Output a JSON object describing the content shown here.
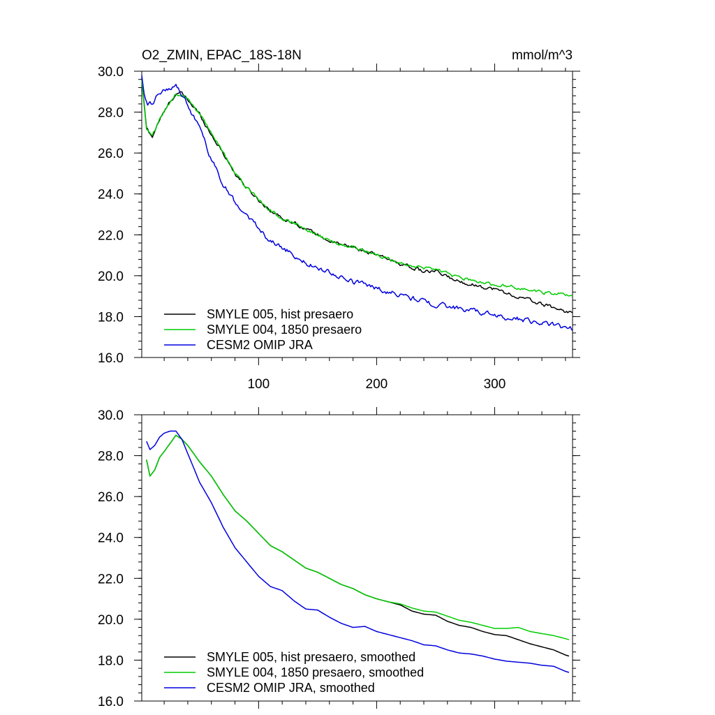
{
  "chart_data": [
    {
      "type": "line",
      "title": "O2_ZMIN, EPAC_18S-18N",
      "units": "mmol/m^3",
      "xlim": [
        1,
        366
      ],
      "ylim": [
        16.0,
        30.0
      ],
      "x_ticks": [
        100,
        200,
        300
      ],
      "y_ticks": [
        16.0,
        18.0,
        20.0,
        22.0,
        24.0,
        26.0,
        28.0,
        30.0
      ],
      "y_tick_labels": [
        "16.0",
        "18.0",
        "20.0",
        "22.0",
        "24.0",
        "26.0",
        "28.0",
        "30.0"
      ],
      "x_tick_labels": [
        "100",
        "200",
        "300"
      ],
      "legend_position": "bottom-left",
      "series": [
        {
          "name": "SMYLE 005, hist presaero",
          "color": "#000000",
          "x": [
            1,
            5,
            10,
            15,
            20,
            25,
            30,
            35,
            40,
            50,
            60,
            70,
            80,
            90,
            100,
            110,
            120,
            130,
            140,
            150,
            160,
            170,
            180,
            190,
            200,
            210,
            220,
            230,
            240,
            250,
            260,
            270,
            280,
            290,
            300,
            310,
            320,
            330,
            340,
            350,
            360,
            366
          ],
          "y": [
            29.6,
            27.2,
            26.8,
            27.5,
            28.0,
            28.5,
            28.9,
            28.9,
            28.6,
            27.9,
            26.9,
            26.0,
            25.0,
            24.3,
            23.7,
            23.2,
            22.8,
            22.6,
            22.3,
            22.0,
            21.7,
            21.5,
            21.4,
            21.2,
            21.0,
            20.8,
            20.6,
            20.4,
            20.2,
            20.2,
            19.95,
            19.7,
            19.6,
            19.45,
            19.35,
            19.15,
            18.95,
            18.8,
            18.6,
            18.45,
            18.25,
            18.2
          ],
          "noise": 0.07
        },
        {
          "name": "SMYLE 004, 1850 presaero",
          "color": "#00cc00",
          "x": [
            1,
            5,
            10,
            15,
            20,
            25,
            30,
            35,
            40,
            50,
            60,
            70,
            80,
            90,
            100,
            110,
            120,
            130,
            140,
            150,
            160,
            170,
            180,
            190,
            200,
            210,
            220,
            230,
            240,
            250,
            260,
            270,
            280,
            290,
            300,
            310,
            320,
            330,
            340,
            350,
            360,
            366
          ],
          "y": [
            29.6,
            27.2,
            26.8,
            27.5,
            28.0,
            28.5,
            28.9,
            28.9,
            28.6,
            27.9,
            26.9,
            26.0,
            25.0,
            24.3,
            23.7,
            23.2,
            22.8,
            22.6,
            22.3,
            22.0,
            21.7,
            21.5,
            21.4,
            21.2,
            21.0,
            20.8,
            20.65,
            20.5,
            20.35,
            20.3,
            20.1,
            19.9,
            19.8,
            19.65,
            19.55,
            19.5,
            19.4,
            19.3,
            19.2,
            19.15,
            19.05,
            19.0
          ],
          "noise": 0.07
        },
        {
          "name": "CESM2 OMIP JRA",
          "color": "#0000dd",
          "x": [
            1,
            3,
            6,
            10,
            15,
            20,
            25,
            30,
            35,
            40,
            50,
            60,
            70,
            80,
            90,
            100,
            110,
            120,
            130,
            140,
            150,
            160,
            170,
            180,
            190,
            200,
            210,
            220,
            230,
            240,
            250,
            260,
            270,
            280,
            290,
            300,
            310,
            320,
            330,
            340,
            350,
            360,
            366
          ],
          "y": [
            29.7,
            28.9,
            28.3,
            28.4,
            28.9,
            29.1,
            29.2,
            29.3,
            28.8,
            28.3,
            27.2,
            25.7,
            24.5,
            23.6,
            23.0,
            22.3,
            21.7,
            21.4,
            21.0,
            20.6,
            20.4,
            20.2,
            19.9,
            19.7,
            19.6,
            19.4,
            19.2,
            19.1,
            18.9,
            18.75,
            18.6,
            18.5,
            18.4,
            18.3,
            18.2,
            18.05,
            17.95,
            17.9,
            17.8,
            17.7,
            17.6,
            17.45,
            17.4
          ],
          "noise": 0.1
        }
      ]
    },
    {
      "type": "line",
      "title": "",
      "xlim": [
        1,
        366
      ],
      "ylim": [
        16.0,
        30.0
      ],
      "x_ticks": [
        100,
        200,
        300
      ],
      "y_ticks": [
        16.0,
        18.0,
        20.0,
        22.0,
        24.0,
        26.0,
        28.0,
        30.0
      ],
      "y_tick_labels": [
        "16.0",
        "18.0",
        "20.0",
        "22.0",
        "24.0",
        "26.0",
        "28.0",
        "30.0"
      ],
      "legend_position": "bottom-left",
      "series": [
        {
          "name": "SMYLE 005, hist presaero, smoothed",
          "color": "#000000",
          "x": [
            5,
            8,
            12,
            16,
            20,
            25,
            30,
            35,
            40,
            50,
            60,
            70,
            80,
            90,
            100,
            110,
            120,
            130,
            140,
            150,
            160,
            170,
            180,
            190,
            200,
            210,
            220,
            230,
            240,
            250,
            260,
            270,
            280,
            290,
            300,
            310,
            320,
            330,
            340,
            350,
            360,
            363
          ],
          "y": [
            27.8,
            27.0,
            27.3,
            27.9,
            28.2,
            28.6,
            29.0,
            28.8,
            28.5,
            27.7,
            27.0,
            26.1,
            25.3,
            24.8,
            24.2,
            23.6,
            23.3,
            22.9,
            22.5,
            22.3,
            22.0,
            21.7,
            21.5,
            21.2,
            21.0,
            20.85,
            20.7,
            20.4,
            20.25,
            20.2,
            19.9,
            19.7,
            19.6,
            19.4,
            19.25,
            19.2,
            19.0,
            18.8,
            18.65,
            18.5,
            18.25,
            18.2
          ],
          "noise": 0
        },
        {
          "name": "SMYLE 004, 1850 presaero, smoothed",
          "color": "#00cc00",
          "x": [
            5,
            8,
            12,
            16,
            20,
            25,
            30,
            35,
            40,
            50,
            60,
            70,
            80,
            90,
            100,
            110,
            120,
            130,
            140,
            150,
            160,
            170,
            180,
            190,
            200,
            210,
            220,
            230,
            240,
            250,
            260,
            270,
            280,
            290,
            300,
            310,
            320,
            330,
            340,
            350,
            360,
            363
          ],
          "y": [
            27.8,
            27.0,
            27.3,
            27.9,
            28.2,
            28.6,
            29.0,
            28.8,
            28.5,
            27.7,
            27.0,
            26.1,
            25.3,
            24.8,
            24.2,
            23.6,
            23.3,
            22.9,
            22.5,
            22.3,
            22.0,
            21.7,
            21.5,
            21.2,
            21.0,
            20.85,
            20.75,
            20.55,
            20.4,
            20.35,
            20.15,
            19.95,
            19.85,
            19.7,
            19.55,
            19.55,
            19.6,
            19.4,
            19.3,
            19.2,
            19.05,
            19.0
          ],
          "noise": 0
        },
        {
          "name": "CESM2 OMIP JRA, smoothed",
          "color": "#0000dd",
          "x": [
            5,
            8,
            12,
            16,
            20,
            25,
            30,
            35,
            40,
            50,
            60,
            70,
            80,
            90,
            100,
            110,
            120,
            130,
            140,
            150,
            160,
            170,
            180,
            190,
            200,
            210,
            220,
            230,
            240,
            250,
            260,
            270,
            280,
            290,
            300,
            310,
            320,
            330,
            340,
            350,
            360,
            363
          ],
          "y": [
            28.7,
            28.3,
            28.5,
            28.9,
            29.1,
            29.2,
            29.2,
            28.8,
            28.1,
            26.7,
            25.7,
            24.5,
            23.5,
            22.8,
            22.1,
            21.6,
            21.4,
            20.9,
            20.5,
            20.45,
            20.1,
            19.8,
            19.6,
            19.65,
            19.4,
            19.25,
            19.1,
            18.95,
            18.75,
            18.7,
            18.5,
            18.35,
            18.3,
            18.2,
            18.05,
            17.95,
            17.9,
            17.85,
            17.75,
            17.7,
            17.45,
            17.4
          ],
          "noise": 0
        }
      ]
    }
  ]
}
